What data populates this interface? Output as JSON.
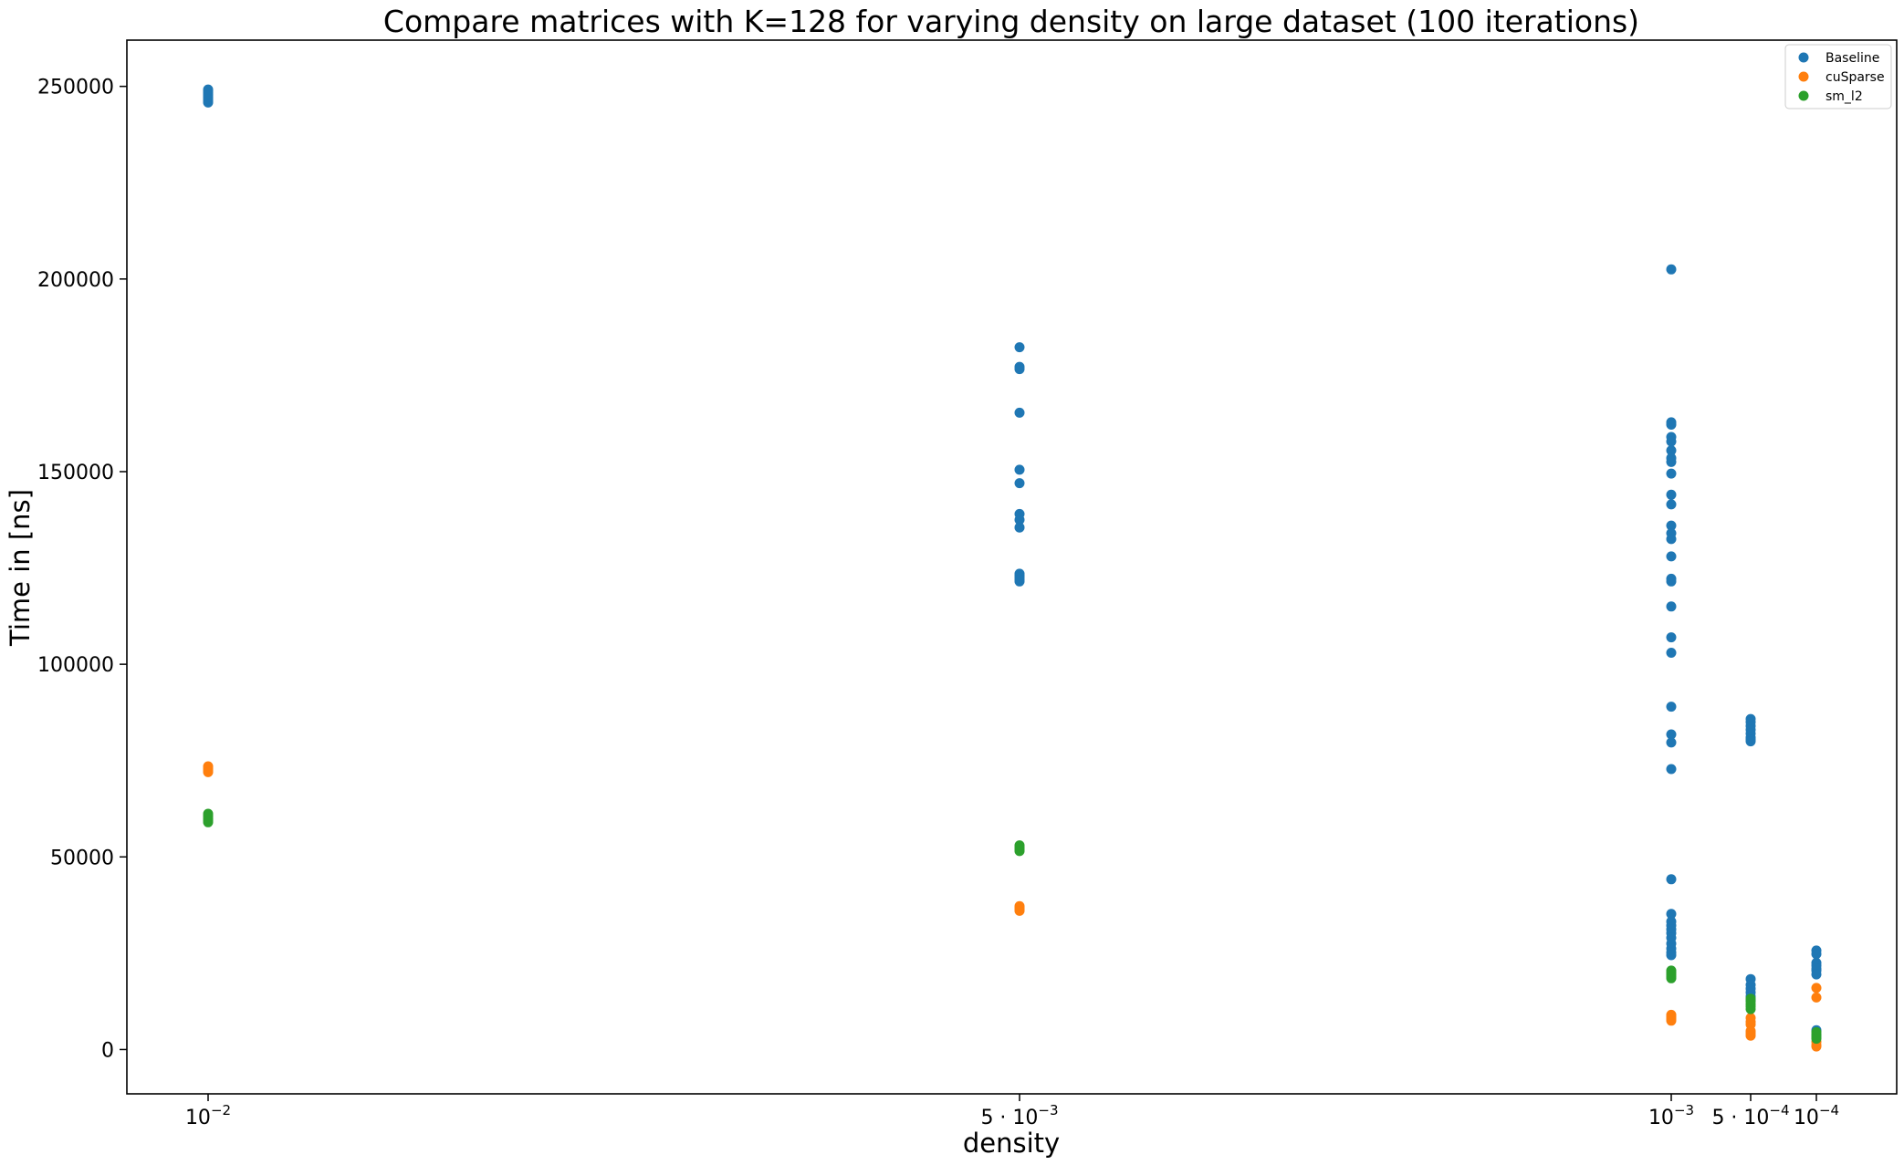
{
  "chart_data": {
    "type": "scatter",
    "title": "Compare matrices with K=128 for varying density on large dataset (100 iterations)",
    "xlabel": "density",
    "ylabel": "Time in [ns]",
    "x_categories": [
      "10^-2",
      "5·10^-3",
      "10^-3",
      "5·10^-4",
      "10^-4"
    ],
    "x_tick_labels": [
      {
        "base": "10",
        "exp": "−2"
      },
      {
        "base": "5 · 10",
        "exp": "−3"
      },
      {
        "base": "10",
        "exp": "−3"
      },
      {
        "base": "5 · 10",
        "exp": "−4"
      },
      {
        "base": "10",
        "exp": "−4"
      }
    ],
    "ylim": [
      -11500,
      262000
    ],
    "yticks": [
      0,
      50000,
      100000,
      150000,
      200000,
      250000
    ],
    "ytick_labels": [
      "0",
      "50000",
      "100000",
      "150000",
      "200000",
      "250000"
    ],
    "grid": false,
    "legend_position": "top-right",
    "series": [
      {
        "name": "Baseline",
        "color": "#1f77b4",
        "points": [
          [
            0,
            245800
          ],
          [
            0,
            246300
          ],
          [
            0,
            246800
          ],
          [
            0,
            247300
          ],
          [
            0,
            247800
          ],
          [
            0,
            248300
          ],
          [
            0,
            248800
          ],
          [
            0,
            249200
          ],
          [
            1,
            182300
          ],
          [
            1,
            177200
          ],
          [
            1,
            176600
          ],
          [
            1,
            165300
          ],
          [
            1,
            150500
          ],
          [
            1,
            147000
          ],
          [
            1,
            139000
          ],
          [
            1,
            137500
          ],
          [
            1,
            135500
          ],
          [
            1,
            123500
          ],
          [
            1,
            123000
          ],
          [
            1,
            122500
          ],
          [
            1,
            122000
          ],
          [
            1,
            121500
          ],
          [
            2,
            202500
          ],
          [
            2,
            162800
          ],
          [
            2,
            162200
          ],
          [
            2,
            159000
          ],
          [
            2,
            157800
          ],
          [
            2,
            155500
          ],
          [
            2,
            153500
          ],
          [
            2,
            152500
          ],
          [
            2,
            149500
          ],
          [
            2,
            144000
          ],
          [
            2,
            141500
          ],
          [
            2,
            136000
          ],
          [
            2,
            134000
          ],
          [
            2,
            132500
          ],
          [
            2,
            128000
          ],
          [
            2,
            122200
          ],
          [
            2,
            121500
          ],
          [
            2,
            115000
          ],
          [
            2,
            107000
          ],
          [
            2,
            103000
          ],
          [
            2,
            89000
          ],
          [
            2,
            81800
          ],
          [
            2,
            79700
          ],
          [
            2,
            72800
          ],
          [
            2,
            44200
          ],
          [
            2,
            35200
          ],
          [
            2,
            33200
          ],
          [
            2,
            32200
          ],
          [
            2,
            31200
          ],
          [
            2,
            30200
          ],
          [
            2,
            29000
          ],
          [
            2,
            27500
          ],
          [
            2,
            26200
          ],
          [
            2,
            25200
          ],
          [
            2,
            24500
          ],
          [
            3,
            85800
          ],
          [
            3,
            85000
          ],
          [
            3,
            84000
          ],
          [
            3,
            83000
          ],
          [
            3,
            82000
          ],
          [
            3,
            81000
          ],
          [
            3,
            80500
          ],
          [
            3,
            80000
          ],
          [
            3,
            18300
          ],
          [
            3,
            16800
          ],
          [
            3,
            15800
          ],
          [
            3,
            14800
          ],
          [
            3,
            13800
          ],
          [
            3,
            12800
          ],
          [
            4,
            25700
          ],
          [
            4,
            24800
          ],
          [
            4,
            22500
          ],
          [
            4,
            21800
          ],
          [
            4,
            21000
          ],
          [
            4,
            20500
          ],
          [
            4,
            19500
          ],
          [
            4,
            5000
          ],
          [
            4,
            3800
          ]
        ]
      },
      {
        "name": "cuSparse",
        "color": "#ff7f0e",
        "points": [
          [
            0,
            73500
          ],
          [
            0,
            73000
          ],
          [
            0,
            72500
          ],
          [
            0,
            72000
          ],
          [
            1,
            37200
          ],
          [
            1,
            36800
          ],
          [
            1,
            36400
          ],
          [
            1,
            36000
          ],
          [
            2,
            9000
          ],
          [
            2,
            8500
          ],
          [
            2,
            8000
          ],
          [
            2,
            7500
          ],
          [
            3,
            8200
          ],
          [
            3,
            7200
          ],
          [
            3,
            6500
          ],
          [
            3,
            4800
          ],
          [
            3,
            4200
          ],
          [
            3,
            3600
          ],
          [
            4,
            16000
          ],
          [
            4,
            13500
          ],
          [
            4,
            2000
          ],
          [
            4,
            1200
          ],
          [
            4,
            800
          ]
        ]
      },
      {
        "name": "sm_l2",
        "color": "#2ca02c",
        "points": [
          [
            0,
            61200
          ],
          [
            0,
            60600
          ],
          [
            0,
            60000
          ],
          [
            0,
            59500
          ],
          [
            0,
            59000
          ],
          [
            1,
            53000
          ],
          [
            1,
            52500
          ],
          [
            1,
            52000
          ],
          [
            1,
            51500
          ],
          [
            2,
            20500
          ],
          [
            2,
            20000
          ],
          [
            2,
            19500
          ],
          [
            2,
            19000
          ],
          [
            2,
            18500
          ],
          [
            3,
            13200
          ],
          [
            3,
            12500
          ],
          [
            3,
            11800
          ],
          [
            3,
            11200
          ],
          [
            3,
            10500
          ],
          [
            4,
            4500
          ],
          [
            4,
            3800
          ],
          [
            4,
            3200
          ],
          [
            4,
            2800
          ]
        ]
      }
    ]
  }
}
